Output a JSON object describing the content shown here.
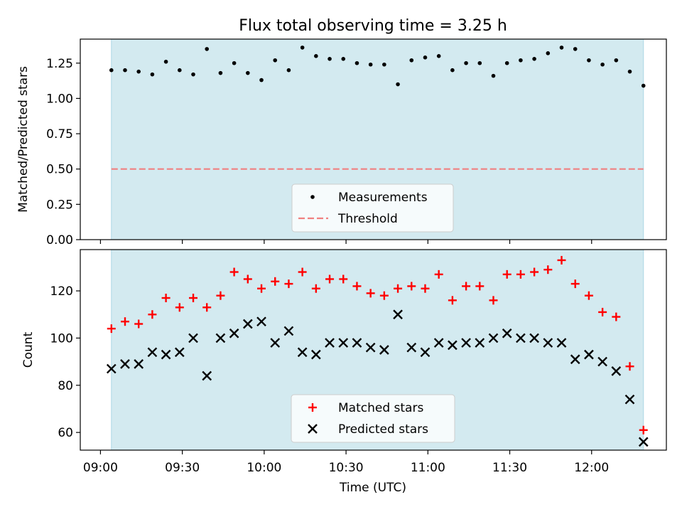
{
  "chart_data": [
    {
      "type": "scatter",
      "title": "Flux total observing time = 3.25 h",
      "xlabel": "",
      "ylabel": "Matched/Predicted stars",
      "ylim": [
        0.0,
        1.42
      ],
      "yticks": [
        "0.00",
        "0.25",
        "0.50",
        "0.75",
        "1.00",
        "1.25"
      ],
      "grid": false,
      "shaded_span": [
        "09:04",
        "12:19"
      ],
      "legend_placement": "lower-center",
      "series": [
        {
          "name": "Measurements",
          "marker": "dot",
          "color": "#000000",
          "x": [
            "09:04",
            "09:09",
            "09:14",
            "09:19",
            "09:24",
            "09:29",
            "09:34",
            "09:39",
            "09:44",
            "09:49",
            "09:54",
            "09:59",
            "10:04",
            "10:09",
            "10:14",
            "10:19",
            "10:24",
            "10:29",
            "10:34",
            "10:39",
            "10:44",
            "10:49",
            "10:54",
            "10:59",
            "11:04",
            "11:09",
            "11:14",
            "11:19",
            "11:24",
            "11:29",
            "11:34",
            "11:39",
            "11:44",
            "11:49",
            "11:54",
            "11:59",
            "12:04",
            "12:09",
            "12:14",
            "12:19"
          ],
          "values": [
            1.2,
            1.2,
            1.19,
            1.17,
            1.26,
            1.2,
            1.17,
            1.35,
            1.18,
            1.25,
            1.18,
            1.13,
            1.27,
            1.2,
            1.36,
            1.3,
            1.28,
            1.28,
            1.25,
            1.24,
            1.24,
            1.1,
            1.27,
            1.29,
            1.3,
            1.2,
            1.25,
            1.25,
            1.16,
            1.25,
            1.27,
            1.28,
            1.32,
            1.36,
            1.35,
            1.27,
            1.24,
            1.27,
            1.19,
            1.09
          ]
        },
        {
          "name": "Threshold",
          "marker": "dashed-line",
          "color": "#f08080",
          "value": 0.5
        }
      ]
    },
    {
      "type": "scatter",
      "title": "",
      "xlabel": "Time (UTC)",
      "ylabel": "Count",
      "ylim": [
        52.5,
        137.5
      ],
      "yticks": [
        "60",
        "80",
        "100",
        "120"
      ],
      "xticks": [
        "09:00",
        "09:30",
        "10:00",
        "10:30",
        "11:00",
        "11:30",
        "12:00"
      ],
      "grid": false,
      "shaded_span": [
        "09:04",
        "12:19"
      ],
      "legend_placement": "lower-center",
      "series": [
        {
          "name": "Matched stars",
          "marker": "plus",
          "color": "#ff0000",
          "x": [
            "09:04",
            "09:09",
            "09:14",
            "09:19",
            "09:24",
            "09:29",
            "09:34",
            "09:39",
            "09:44",
            "09:49",
            "09:54",
            "09:59",
            "10:04",
            "10:09",
            "10:14",
            "10:19",
            "10:24",
            "10:29",
            "10:34",
            "10:39",
            "10:44",
            "10:49",
            "10:54",
            "10:59",
            "11:04",
            "11:09",
            "11:14",
            "11:19",
            "11:24",
            "11:29",
            "11:34",
            "11:39",
            "11:44",
            "11:49",
            "11:54",
            "11:59",
            "12:04",
            "12:09",
            "12:14",
            "12:19"
          ],
          "values": [
            104,
            107,
            106,
            110,
            117,
            113,
            117,
            113,
            118,
            128,
            125,
            121,
            124,
            123,
            128,
            121,
            125,
            125,
            122,
            119,
            118,
            121,
            122,
            121,
            127,
            116,
            122,
            122,
            116,
            127,
            127,
            128,
            129,
            133,
            123,
            118,
            111,
            109,
            88,
            61
          ]
        },
        {
          "name": "Predicted stars",
          "marker": "x",
          "color": "#000000",
          "x": [
            "09:04",
            "09:09",
            "09:14",
            "09:19",
            "09:24",
            "09:29",
            "09:34",
            "09:39",
            "09:44",
            "09:49",
            "09:54",
            "09:59",
            "10:04",
            "10:09",
            "10:14",
            "10:19",
            "10:24",
            "10:29",
            "10:34",
            "10:39",
            "10:44",
            "10:49",
            "10:54",
            "10:59",
            "11:04",
            "11:09",
            "11:14",
            "11:19",
            "11:24",
            "11:29",
            "11:34",
            "11:39",
            "11:44",
            "11:49",
            "11:54",
            "11:59",
            "12:04",
            "12:09",
            "12:14",
            "12:19"
          ],
          "values": [
            87,
            89,
            89,
            94,
            93,
            94,
            100,
            84,
            100,
            102,
            106,
            107,
            98,
            103,
            94,
            93,
            98,
            98,
            98,
            96,
            95,
            110,
            96,
            94,
            98,
            97,
            98,
            98,
            100,
            102,
            100,
            100,
            98,
            98,
            91,
            93,
            90,
            86,
            74,
            56
          ]
        }
      ]
    }
  ],
  "colors": {
    "shade": "#d3eaf0",
    "shade_edge": "#add8e6",
    "threshold": "#f08080",
    "matched": "#ff0000",
    "predicted": "#000000"
  }
}
